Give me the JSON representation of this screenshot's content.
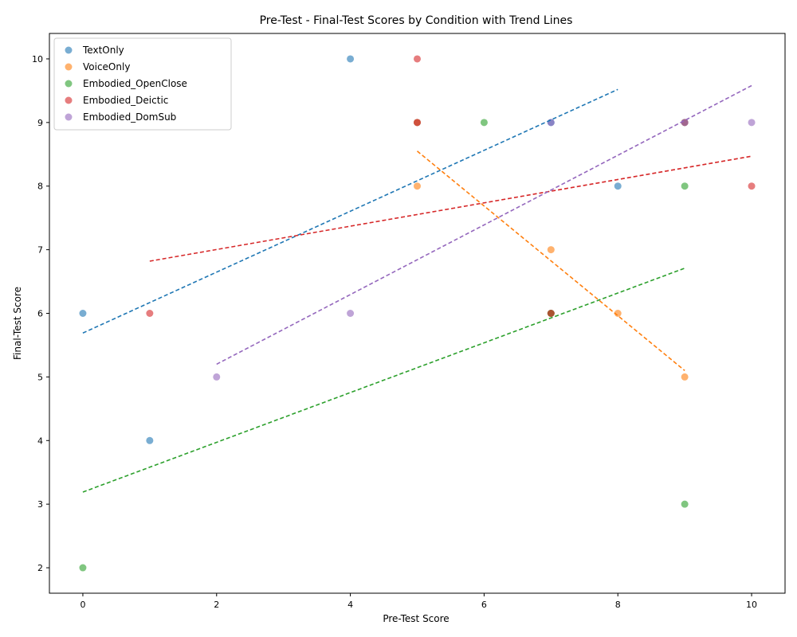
{
  "chart_data": {
    "type": "scatter",
    "title": "Pre-Test - Final-Test Scores by Condition with Trend Lines",
    "xlabel": "Pre-Test Score",
    "ylabel": "Final-Test Score",
    "xlim": [
      -0.5,
      10.5
    ],
    "ylim": [
      1.6,
      10.4
    ],
    "xticks": [
      0,
      2,
      4,
      6,
      8,
      10
    ],
    "yticks": [
      2,
      3,
      4,
      5,
      6,
      7,
      8,
      9,
      10
    ],
    "grid": false,
    "legend_position": "upper-left",
    "series": [
      {
        "name": "TextOnly",
        "color": "#1f77b4",
        "points": [
          [
            0,
            6
          ],
          [
            1,
            4
          ],
          [
            4,
            10
          ],
          [
            5,
            9
          ],
          [
            7,
            9
          ],
          [
            7,
            6
          ],
          [
            8,
            8
          ]
        ],
        "trend": [
          [
            0,
            5.69
          ],
          [
            8,
            9.52
          ]
        ]
      },
      {
        "name": "VoiceOnly",
        "color": "#ff7f0e",
        "points": [
          [
            5,
            9
          ],
          [
            5,
            8
          ],
          [
            7,
            7
          ],
          [
            7,
            6
          ],
          [
            8,
            6
          ],
          [
            9,
            5
          ]
        ],
        "trend": [
          [
            5,
            8.55
          ],
          [
            9,
            5.1
          ]
        ]
      },
      {
        "name": "Embodied_OpenClose",
        "color": "#2ca02c",
        "points": [
          [
            0,
            2
          ],
          [
            6,
            9
          ],
          [
            7,
            6
          ],
          [
            9,
            9
          ],
          [
            9,
            8
          ],
          [
            9,
            3
          ]
        ],
        "trend": [
          [
            0,
            3.19
          ],
          [
            9,
            6.71
          ]
        ]
      },
      {
        "name": "Embodied_Deictic",
        "color": "#d62728",
        "points": [
          [
            1,
            6
          ],
          [
            5,
            10
          ],
          [
            5,
            9
          ],
          [
            7,
            6
          ],
          [
            9,
            9
          ],
          [
            10,
            8
          ]
        ],
        "trend": [
          [
            1,
            6.82
          ],
          [
            10,
            8.47
          ]
        ]
      },
      {
        "name": "Embodied_DomSub",
        "color": "#9467bd",
        "points": [
          [
            2,
            5
          ],
          [
            4,
            6
          ],
          [
            7,
            9
          ],
          [
            9,
            9
          ],
          [
            10,
            9
          ]
        ],
        "trend": [
          [
            2,
            5.2
          ],
          [
            10,
            9.58
          ]
        ]
      }
    ]
  }
}
